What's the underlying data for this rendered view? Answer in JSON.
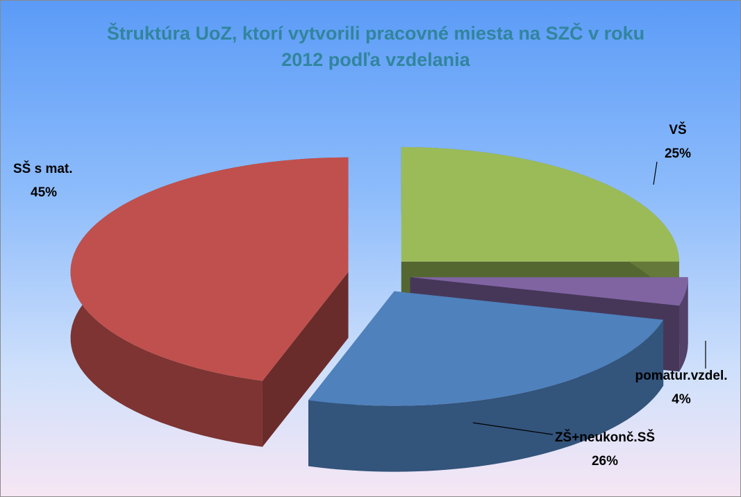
{
  "chart_data": {
    "type": "pie",
    "title": "Štruktúra  UoZ, ktorí vytvorili pracovné miesta  na SZČ v roku 2012  podľa vzdelania",
    "categories": [
      "VŠ",
      "pomatur.vzdel.",
      "ZŠ+neukonč.SŠ",
      "SŠ s mat."
    ],
    "values": [
      25,
      4,
      26,
      45
    ],
    "value_labels": [
      "25%",
      "4%",
      "26%",
      "45%"
    ],
    "colors": [
      "#9bbb59",
      "#8064a2",
      "#4f81bd",
      "#c0504d"
    ]
  }
}
